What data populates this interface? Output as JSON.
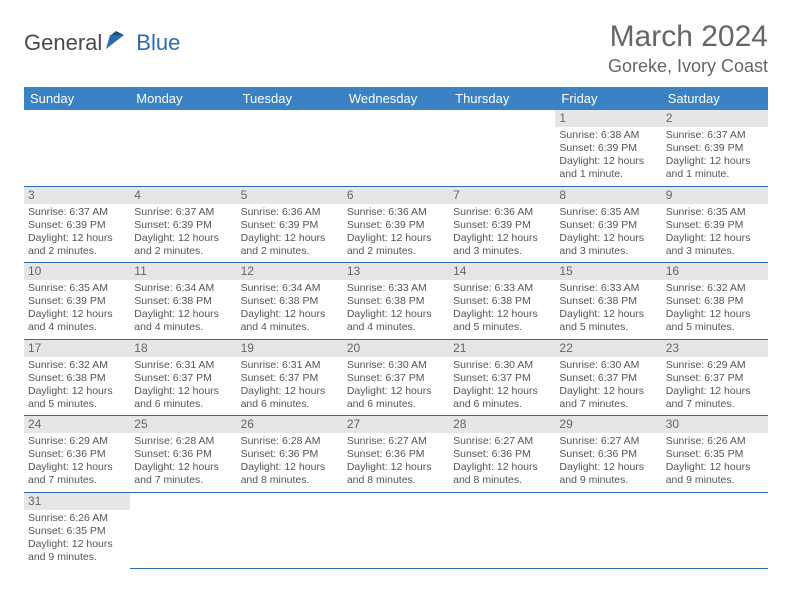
{
  "logo": {
    "part1": "General",
    "part2": "Blue"
  },
  "title": "March 2024",
  "location": "Goreke, Ivory Coast",
  "colors": {
    "header_bg": "#3b82c4",
    "header_text": "#ffffff",
    "border": "#2b6cb0",
    "daynum_bg": "#e6e6e6",
    "text": "#555555",
    "logo_gray": "#4a4a4a",
    "logo_blue": "#2b6cb0"
  },
  "weekdays": [
    "Sunday",
    "Monday",
    "Tuesday",
    "Wednesday",
    "Thursday",
    "Friday",
    "Saturday"
  ],
  "weeks": [
    [
      null,
      null,
      null,
      null,
      null,
      {
        "day": "1",
        "sunrise": "Sunrise: 6:38 AM",
        "sunset": "Sunset: 6:39 PM",
        "daylight": "Daylight: 12 hours and 1 minute."
      },
      {
        "day": "2",
        "sunrise": "Sunrise: 6:37 AM",
        "sunset": "Sunset: 6:39 PM",
        "daylight": "Daylight: 12 hours and 1 minute."
      }
    ],
    [
      {
        "day": "3",
        "sunrise": "Sunrise: 6:37 AM",
        "sunset": "Sunset: 6:39 PM",
        "daylight": "Daylight: 12 hours and 2 minutes."
      },
      {
        "day": "4",
        "sunrise": "Sunrise: 6:37 AM",
        "sunset": "Sunset: 6:39 PM",
        "daylight": "Daylight: 12 hours and 2 minutes."
      },
      {
        "day": "5",
        "sunrise": "Sunrise: 6:36 AM",
        "sunset": "Sunset: 6:39 PM",
        "daylight": "Daylight: 12 hours and 2 minutes."
      },
      {
        "day": "6",
        "sunrise": "Sunrise: 6:36 AM",
        "sunset": "Sunset: 6:39 PM",
        "daylight": "Daylight: 12 hours and 2 minutes."
      },
      {
        "day": "7",
        "sunrise": "Sunrise: 6:36 AM",
        "sunset": "Sunset: 6:39 PM",
        "daylight": "Daylight: 12 hours and 3 minutes."
      },
      {
        "day": "8",
        "sunrise": "Sunrise: 6:35 AM",
        "sunset": "Sunset: 6:39 PM",
        "daylight": "Daylight: 12 hours and 3 minutes."
      },
      {
        "day": "9",
        "sunrise": "Sunrise: 6:35 AM",
        "sunset": "Sunset: 6:39 PM",
        "daylight": "Daylight: 12 hours and 3 minutes."
      }
    ],
    [
      {
        "day": "10",
        "sunrise": "Sunrise: 6:35 AM",
        "sunset": "Sunset: 6:39 PM",
        "daylight": "Daylight: 12 hours and 4 minutes."
      },
      {
        "day": "11",
        "sunrise": "Sunrise: 6:34 AM",
        "sunset": "Sunset: 6:38 PM",
        "daylight": "Daylight: 12 hours and 4 minutes."
      },
      {
        "day": "12",
        "sunrise": "Sunrise: 6:34 AM",
        "sunset": "Sunset: 6:38 PM",
        "daylight": "Daylight: 12 hours and 4 minutes."
      },
      {
        "day": "13",
        "sunrise": "Sunrise: 6:33 AM",
        "sunset": "Sunset: 6:38 PM",
        "daylight": "Daylight: 12 hours and 4 minutes."
      },
      {
        "day": "14",
        "sunrise": "Sunrise: 6:33 AM",
        "sunset": "Sunset: 6:38 PM",
        "daylight": "Daylight: 12 hours and 5 minutes."
      },
      {
        "day": "15",
        "sunrise": "Sunrise: 6:33 AM",
        "sunset": "Sunset: 6:38 PM",
        "daylight": "Daylight: 12 hours and 5 minutes."
      },
      {
        "day": "16",
        "sunrise": "Sunrise: 6:32 AM",
        "sunset": "Sunset: 6:38 PM",
        "daylight": "Daylight: 12 hours and 5 minutes."
      }
    ],
    [
      {
        "day": "17",
        "sunrise": "Sunrise: 6:32 AM",
        "sunset": "Sunset: 6:38 PM",
        "daylight": "Daylight: 12 hours and 5 minutes."
      },
      {
        "day": "18",
        "sunrise": "Sunrise: 6:31 AM",
        "sunset": "Sunset: 6:37 PM",
        "daylight": "Daylight: 12 hours and 6 minutes."
      },
      {
        "day": "19",
        "sunrise": "Sunrise: 6:31 AM",
        "sunset": "Sunset: 6:37 PM",
        "daylight": "Daylight: 12 hours and 6 minutes."
      },
      {
        "day": "20",
        "sunrise": "Sunrise: 6:30 AM",
        "sunset": "Sunset: 6:37 PM",
        "daylight": "Daylight: 12 hours and 6 minutes."
      },
      {
        "day": "21",
        "sunrise": "Sunrise: 6:30 AM",
        "sunset": "Sunset: 6:37 PM",
        "daylight": "Daylight: 12 hours and 6 minutes."
      },
      {
        "day": "22",
        "sunrise": "Sunrise: 6:30 AM",
        "sunset": "Sunset: 6:37 PM",
        "daylight": "Daylight: 12 hours and 7 minutes."
      },
      {
        "day": "23",
        "sunrise": "Sunrise: 6:29 AM",
        "sunset": "Sunset: 6:37 PM",
        "daylight": "Daylight: 12 hours and 7 minutes."
      }
    ],
    [
      {
        "day": "24",
        "sunrise": "Sunrise: 6:29 AM",
        "sunset": "Sunset: 6:36 PM",
        "daylight": "Daylight: 12 hours and 7 minutes."
      },
      {
        "day": "25",
        "sunrise": "Sunrise: 6:28 AM",
        "sunset": "Sunset: 6:36 PM",
        "daylight": "Daylight: 12 hours and 7 minutes."
      },
      {
        "day": "26",
        "sunrise": "Sunrise: 6:28 AM",
        "sunset": "Sunset: 6:36 PM",
        "daylight": "Daylight: 12 hours and 8 minutes."
      },
      {
        "day": "27",
        "sunrise": "Sunrise: 6:27 AM",
        "sunset": "Sunset: 6:36 PM",
        "daylight": "Daylight: 12 hours and 8 minutes."
      },
      {
        "day": "28",
        "sunrise": "Sunrise: 6:27 AM",
        "sunset": "Sunset: 6:36 PM",
        "daylight": "Daylight: 12 hours and 8 minutes."
      },
      {
        "day": "29",
        "sunrise": "Sunrise: 6:27 AM",
        "sunset": "Sunset: 6:36 PM",
        "daylight": "Daylight: 12 hours and 9 minutes."
      },
      {
        "day": "30",
        "sunrise": "Sunrise: 6:26 AM",
        "sunset": "Sunset: 6:35 PM",
        "daylight": "Daylight: 12 hours and 9 minutes."
      }
    ],
    [
      {
        "day": "31",
        "sunrise": "Sunrise: 6:26 AM",
        "sunset": "Sunset: 6:35 PM",
        "daylight": "Daylight: 12 hours and 9 minutes."
      },
      null,
      null,
      null,
      null,
      null,
      null
    ]
  ]
}
